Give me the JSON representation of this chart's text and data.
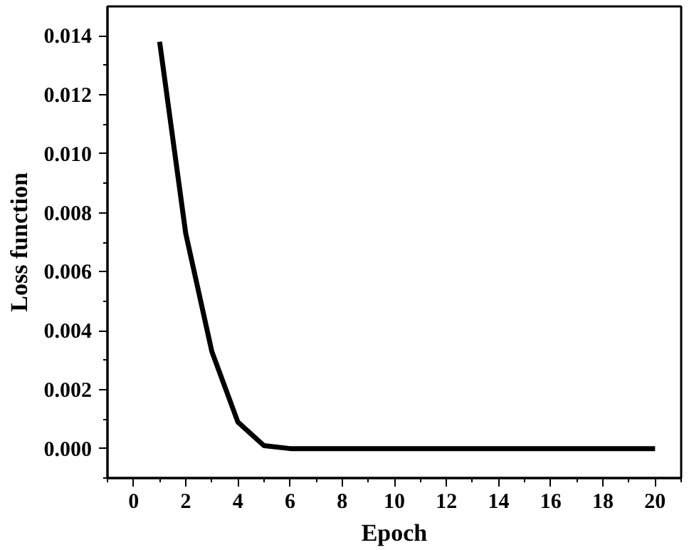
{
  "chart_data": {
    "type": "line",
    "xlabel": "Epoch",
    "ylabel": "Loss function",
    "x": [
      1,
      2,
      3,
      4,
      5,
      6,
      7,
      8,
      9,
      10,
      11,
      12,
      13,
      14,
      15,
      16,
      17,
      18,
      19,
      20
    ],
    "series": [
      {
        "color": "#000000",
        "values": [
          0.0138,
          0.0073,
          0.0033,
          0.0009,
          0.0001,
          0.0,
          0.0,
          0.0,
          0.0,
          0.0,
          0.0,
          0.0,
          0.0,
          0.0,
          0.0,
          0.0,
          0.0,
          0.0,
          0.0,
          0.0
        ]
      }
    ],
    "xlim": [
      -1,
      21
    ],
    "ylim": [
      -0.001,
      0.015
    ],
    "xticks": [
      0,
      2,
      4,
      6,
      8,
      10,
      12,
      14,
      16,
      18,
      20
    ],
    "yticks": [
      {
        "value": 0,
        "label": "0.000"
      },
      {
        "value": 0.002,
        "label": "0.002"
      },
      {
        "value": 0.004,
        "label": "0.004"
      },
      {
        "value": 0.006,
        "label": "0.006"
      },
      {
        "value": 0.008,
        "label": "0.008"
      },
      {
        "value": 0.01,
        "label": "0.010"
      },
      {
        "value": 0.012,
        "label": "0.012"
      },
      {
        "value": 0.014,
        "label": "0.014"
      }
    ],
    "grid": false,
    "marker": "none",
    "line_style": "solid"
  }
}
